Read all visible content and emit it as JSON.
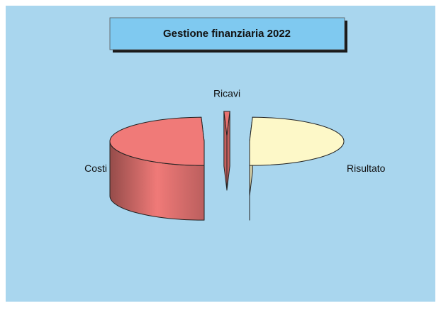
{
  "chart_data": {
    "type": "pie",
    "three_d": true,
    "title": "Gestione finanziaria 2022",
    "categories": [
      "Costi",
      "Ricavi",
      "Risultato"
    ],
    "values": [
      49.5,
      1,
      49.5
    ],
    "colors": [
      "#f07a78",
      "#e8716f",
      "#fdf8c8"
    ],
    "background": "#a9d6ee",
    "title_background": "#7fc9f0"
  }
}
